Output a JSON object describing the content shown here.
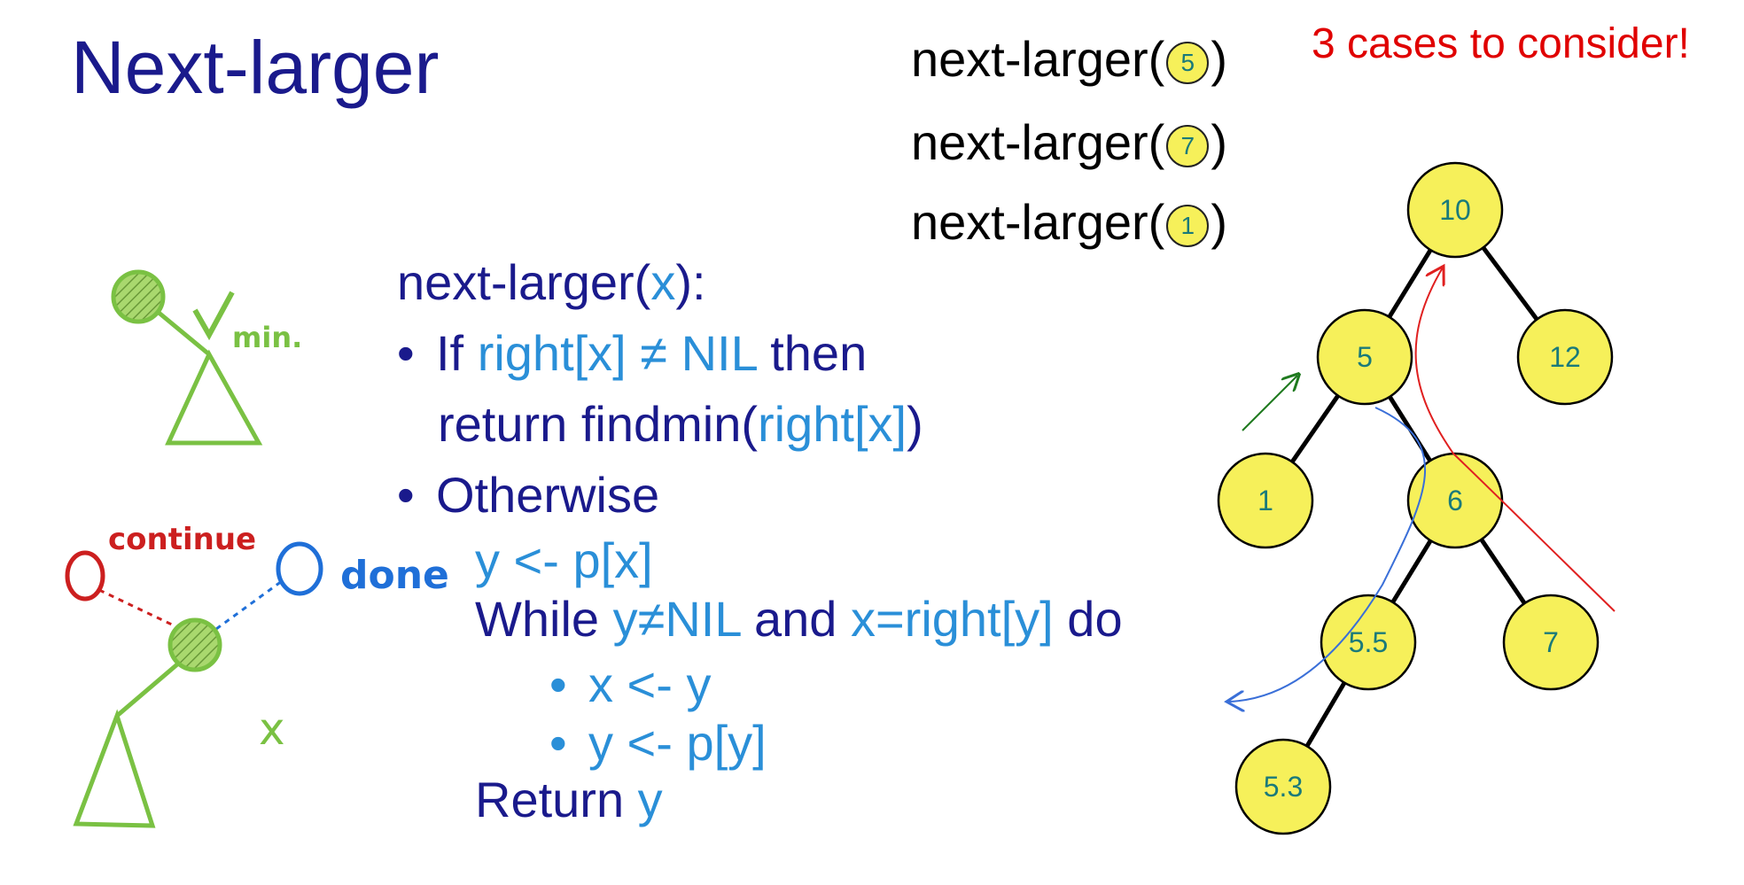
{
  "title": "Next-larger",
  "cases_note": "3 cases to consider!",
  "examples": [
    {
      "prefix": "next-larger(",
      "node": "5",
      "suffix": ")"
    },
    {
      "prefix": "next-larger(",
      "node": "7",
      "suffix": ")"
    },
    {
      "prefix": "next-larger(",
      "node": "1",
      "suffix": ")"
    }
  ],
  "pseudocode": {
    "signature": {
      "name": "next-larger(",
      "arg": "x",
      "close": "):"
    },
    "line1": {
      "bullet": "•",
      "kw1": "If ",
      "cond": "right[x] ≠ NIL",
      "kw2": " then"
    },
    "line2": {
      "kw": "return findmin(",
      "arg": "right[x]",
      "close": ")"
    },
    "line3": {
      "bullet": "•",
      "kw": "Otherwise"
    },
    "line4": {
      "text": "y <- p[x]"
    },
    "line5": {
      "kw1": "While ",
      "c1": "y≠NIL",
      "kw2": " and ",
      "c2": "x=right[y]",
      "kw3": " do"
    },
    "line6": {
      "bullet": "•",
      "text": "x <- y"
    },
    "line7": {
      "bullet": "•",
      "text": "y <- p[y]"
    },
    "line8": {
      "kw": "Return ",
      "val": "y"
    }
  },
  "sketch_notes": {
    "min": "min.",
    "continue": "continue",
    "done": "done",
    "x": "x"
  },
  "tree": {
    "nodes": [
      "10",
      "5",
      "12",
      "1",
      "6",
      "5.5",
      "7",
      "5.3"
    ],
    "edges": [
      [
        "10",
        "5"
      ],
      [
        "10",
        "12"
      ],
      [
        "5",
        "1"
      ],
      [
        "5",
        "6"
      ],
      [
        "6",
        "5.5"
      ],
      [
        "6",
        "7"
      ],
      [
        "5.5",
        "5.3"
      ]
    ],
    "node_fill": "#f6f05a"
  },
  "colors": {
    "title": "#1a1a8c",
    "highlight": "#2a8fd8",
    "cases": "#e00000",
    "green_arrow": "#1f7a1f",
    "blue_arrow": "#3a6fd8",
    "red_arrow": "#e02020"
  }
}
